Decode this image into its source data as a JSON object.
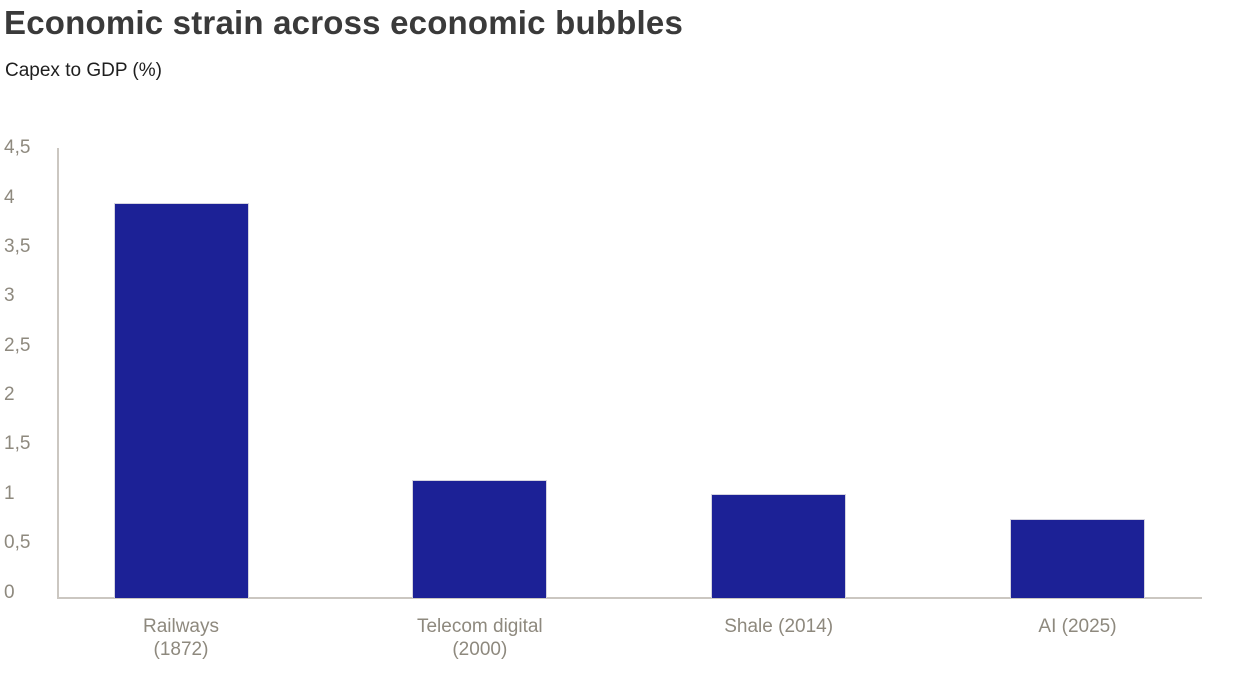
{
  "chart": {
    "title": "Economic strain across economic bubbles",
    "subtitle": "Capex to GDP (%)"
  },
  "chart_data": {
    "type": "bar",
    "title": "Economic strain across economic bubbles",
    "subtitle": "Capex to GDP (%)",
    "ylabel": "Capex to GDP (%)",
    "categories": [
      "Railways (1872)",
      "Telecom digital (2000)",
      "Shale (2014)",
      "AI (2025)"
    ],
    "category_label_lines": [
      [
        "Railways",
        "(1872)"
      ],
      [
        "Telecom digital",
        "(2000)"
      ],
      [
        "Shale (2014)"
      ],
      [
        "AI (2025)"
      ]
    ],
    "values": [
      4.0,
      1.2,
      1.05,
      0.8
    ],
    "ylim": [
      0,
      4.5
    ],
    "yticks": [
      {
        "value": 0,
        "label": "0"
      },
      {
        "value": 0.5,
        "label": "0,5"
      },
      {
        "value": 1,
        "label": "1"
      },
      {
        "value": 1.5,
        "label": "1,5"
      },
      {
        "value": 2,
        "label": "2"
      },
      {
        "value": 2.5,
        "label": "2,5"
      },
      {
        "value": 3,
        "label": "3"
      },
      {
        "value": 3.5,
        "label": "3,5"
      },
      {
        "value": 4,
        "label": "4"
      },
      {
        "value": 4.5,
        "label": "4,5"
      }
    ],
    "decimal_separator": ",",
    "grid": false,
    "legend": false,
    "colors": {
      "bar": "#1c2196",
      "axis": "#cbc7c1",
      "tick_text": "#8e897e",
      "title_text": "#3a3a3a",
      "subtitle_text": "#1e1e1e",
      "background": "#ffffff"
    }
  }
}
